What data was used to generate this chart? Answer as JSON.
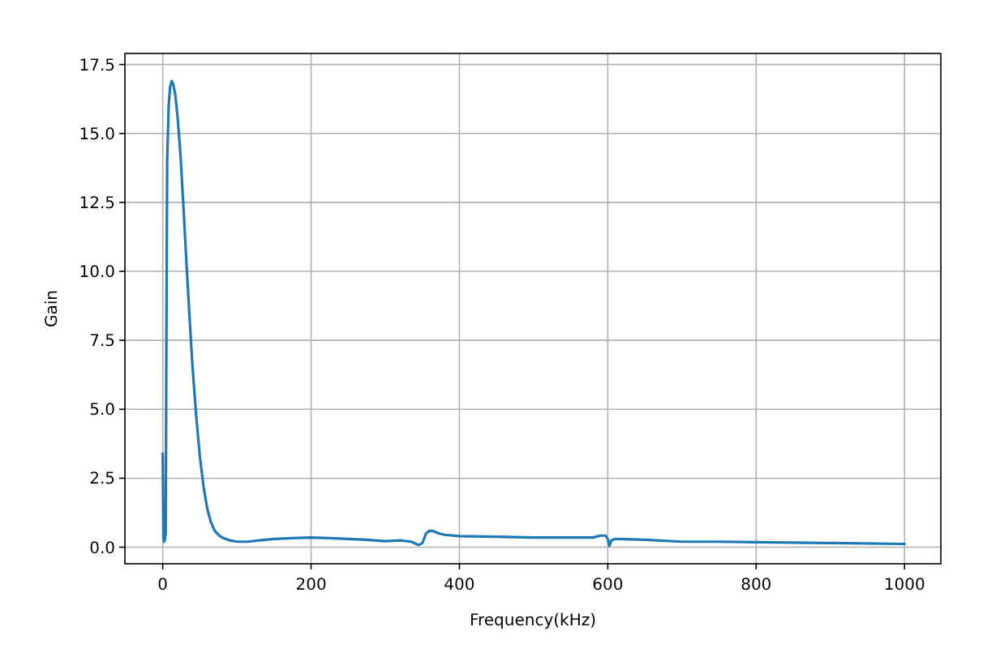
{
  "chart_data": {
    "type": "line",
    "xlabel": "Frequency(kHz)",
    "ylabel": "Gain",
    "series": [
      {
        "color": "#1f77b4",
        "x": [
          0,
          1,
          2,
          3,
          4,
          5,
          6,
          8,
          10,
          12,
          14,
          17,
          20,
          24,
          28,
          32,
          36,
          40,
          45,
          50,
          55,
          60,
          65,
          70,
          75,
          80,
          90,
          100,
          115,
          130,
          150,
          175,
          200,
          225,
          250,
          275,
          300,
          320,
          335,
          345,
          350,
          355,
          360,
          365,
          372,
          380,
          400,
          450,
          500,
          550,
          580,
          590,
          597,
          600,
          602,
          605,
          610,
          650,
          700,
          750,
          800,
          900,
          1000
        ],
        "values": [
          3.4,
          0.3,
          0.2,
          0.3,
          0.5,
          8,
          14,
          16,
          16.7,
          16.9,
          16.8,
          16.4,
          15.6,
          14.2,
          12.3,
          10.3,
          8.4,
          6.6,
          4.8,
          3.3,
          2.2,
          1.4,
          0.9,
          0.6,
          0.45,
          0.35,
          0.25,
          0.2,
          0.2,
          0.25,
          0.3,
          0.33,
          0.35,
          0.33,
          0.3,
          0.27,
          0.22,
          0.25,
          0.2,
          0.08,
          0.15,
          0.5,
          0.6,
          0.58,
          0.5,
          0.45,
          0.4,
          0.38,
          0.35,
          0.35,
          0.35,
          0.42,
          0.42,
          0.3,
          0.05,
          0.25,
          0.3,
          0.27,
          0.2,
          0.2,
          0.18,
          0.15,
          0.12
        ]
      }
    ],
    "xlim": [
      -51,
      1049
    ],
    "ylim": [
      -0.6,
      17.9
    ],
    "xticks": [
      0,
      200,
      400,
      600,
      800,
      1000
    ],
    "yticks": [
      {
        "value": 0,
        "label": "0.0"
      },
      {
        "value": 2.5,
        "label": "2.5"
      },
      {
        "value": 5,
        "label": "5.0"
      },
      {
        "value": 7.5,
        "label": "7.5"
      },
      {
        "value": 10,
        "label": "10.0"
      },
      {
        "value": 12.5,
        "label": "12.5"
      },
      {
        "value": 15,
        "label": "15.0"
      },
      {
        "value": 17.5,
        "label": "17.5"
      }
    ],
    "grid": true
  }
}
